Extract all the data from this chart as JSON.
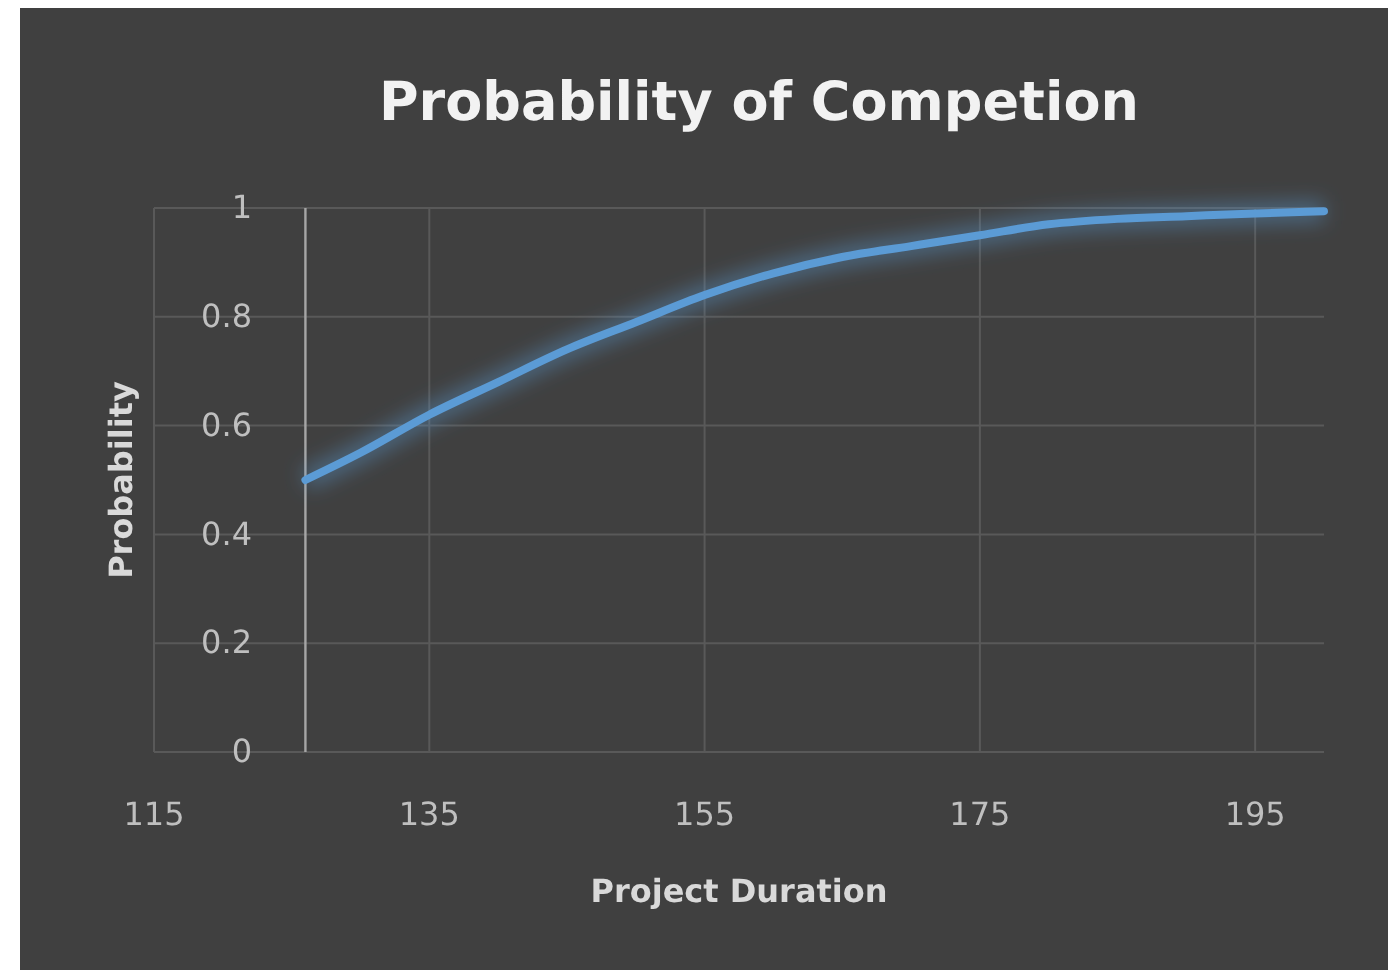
{
  "chart_data": {
    "type": "line",
    "title": "Probability of Competion",
    "xlabel": "Project Duration",
    "ylabel": "Probability",
    "x": [
      126,
      130,
      135,
      140,
      145,
      150,
      155,
      160,
      165,
      170,
      175,
      180,
      185,
      190,
      195,
      200
    ],
    "series": [
      {
        "color": "#5b9bd5",
        "values": [
          0.5,
          0.55,
          0.62,
          0.68,
          0.74,
          0.79,
          0.84,
          0.88,
          0.91,
          0.93,
          0.95,
          0.97,
          0.98,
          0.985,
          0.99,
          0.994
        ]
      }
    ],
    "xlim": [
      115,
      200
    ],
    "xticks": [
      115,
      135,
      155,
      175,
      195
    ],
    "ylim": [
      0,
      1
    ],
    "yticks": [
      0,
      0.2,
      0.4,
      0.6,
      0.8,
      1
    ],
    "grid": true,
    "marker": "none",
    "line_style": "solid",
    "ref_lines": [
      {
        "axis": "x",
        "value": 126,
        "color": "#a6a6a6"
      }
    ]
  }
}
